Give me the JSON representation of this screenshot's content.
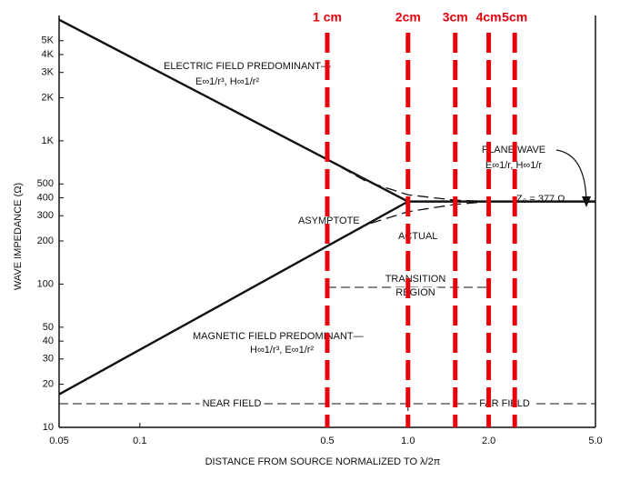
{
  "chart_data": {
    "type": "line",
    "xlabel": "DISTANCE FROM SOURCE NORMALIZED TO λ/2π",
    "ylabel": "WAVE IMPEDANCE (Ω)",
    "xscale": "log",
    "yscale": "log",
    "xlim": [
      0.05,
      5.0
    ],
    "ylim": [
      10,
      7500
    ],
    "xticks": [
      0.05,
      0.1,
      0.5,
      {
        "value": 1.0,
        "label": "1.0"
      },
      {
        "value": 2.0,
        "label": "2.0"
      },
      {
        "value": 5.0,
        "label": "5.0"
      }
    ],
    "yticks": [
      10,
      20,
      30,
      40,
      50,
      100,
      200,
      300,
      400,
      500,
      {
        "value": 1000,
        "label": "1K"
      },
      {
        "value": 2000,
        "label": "2K"
      },
      {
        "value": 3000,
        "label": "3K"
      },
      {
        "value": 4000,
        "label": "4K"
      },
      {
        "value": 5000,
        "label": "5K"
      }
    ],
    "series": [
      {
        "color": "#111111",
        "style": "solid",
        "x": [
          0.05,
          1.0
        ],
        "values": [
          7000,
          377
        ]
      },
      {
        "color": "#111111",
        "style": "solid",
        "x": [
          0.05,
          1.0
        ],
        "values": [
          17,
          377
        ]
      },
      {
        "color": "#111111",
        "style": "solid",
        "x": [
          1.0,
          5.0
        ],
        "values": [
          377,
          377
        ]
      },
      {
        "color": "#111111",
        "style": "dashed",
        "x": [
          0.5,
          0.7,
          1.0,
          1.5,
          2.0
        ],
        "values": [
          740,
          520,
          420,
          385,
          377
        ]
      },
      {
        "color": "#111111",
        "style": "dashed",
        "x": [
          0.5,
          0.7,
          1.0,
          1.5,
          2.0
        ],
        "values": [
          184,
          260,
          320,
          360,
          377
        ]
      }
    ],
    "markers": {
      "color": "#e8000b",
      "items": [
        {
          "label": "1 cm",
          "x": 0.5
        },
        {
          "label": "2cm",
          "x": 1.0
        },
        {
          "label": "3cm",
          "x": 1.5
        },
        {
          "label": "4cm",
          "x": 2.0
        },
        {
          "label": "5cm",
          "x": 2.5
        }
      ]
    },
    "annotations": [
      "ELECTRIC FIELD PREDOMINANT—",
      "E∞1/r³, H∞1/r²",
      "PLANE WAVE",
      "E∞1/r, H∞1/r",
      "Z₀ = 377 Ω",
      "ASYMPTOTE",
      "ACTUAL",
      "TRANSITION",
      "REGION",
      "MAGNETIC FIELD PREDOMINANT—",
      "H∞1/r³, E∞1/r²",
      "NEAR FIELD",
      "FAR FIELD"
    ]
  }
}
